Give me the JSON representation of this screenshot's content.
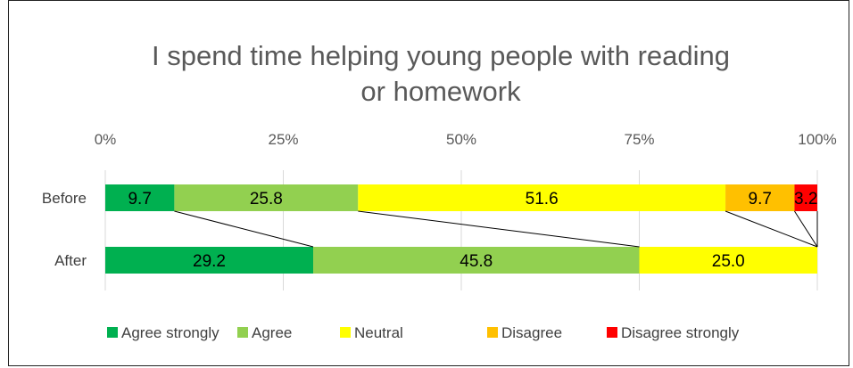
{
  "chart_data": {
    "type": "bar",
    "orientation": "horizontal",
    "stacked": "percent",
    "title": "I spend time helping young people with reading or homework",
    "title_lines": [
      "I spend time helping young people with reading",
      "or homework"
    ],
    "categories": [
      "Before",
      "After"
    ],
    "x_ticks": [
      "0%",
      "25%",
      "50%",
      "75%",
      "100%"
    ],
    "xlim": [
      0,
      100
    ],
    "grid": true,
    "legend_position": "bottom",
    "series": [
      {
        "name": "Agree strongly",
        "color": "#00b050",
        "values": [
          9.7,
          29.2
        ],
        "labels": [
          "9.7",
          "29.2"
        ]
      },
      {
        "name": "Agree",
        "color": "#92d050",
        "values": [
          25.8,
          45.8
        ],
        "labels": [
          "25.8",
          "45.8"
        ]
      },
      {
        "name": "Neutral",
        "color": "#ffff00",
        "values": [
          51.6,
          25.0
        ],
        "labels": [
          "51.6",
          "25.0"
        ]
      },
      {
        "name": "Disagree",
        "color": "#ffc000",
        "values": [
          9.7,
          0
        ],
        "labels": [
          "9.7",
          ""
        ]
      },
      {
        "name": "Disagree strongly",
        "color": "#ff0000",
        "values": [
          3.2,
          0
        ],
        "labels": [
          "3.2",
          ""
        ]
      }
    ]
  }
}
